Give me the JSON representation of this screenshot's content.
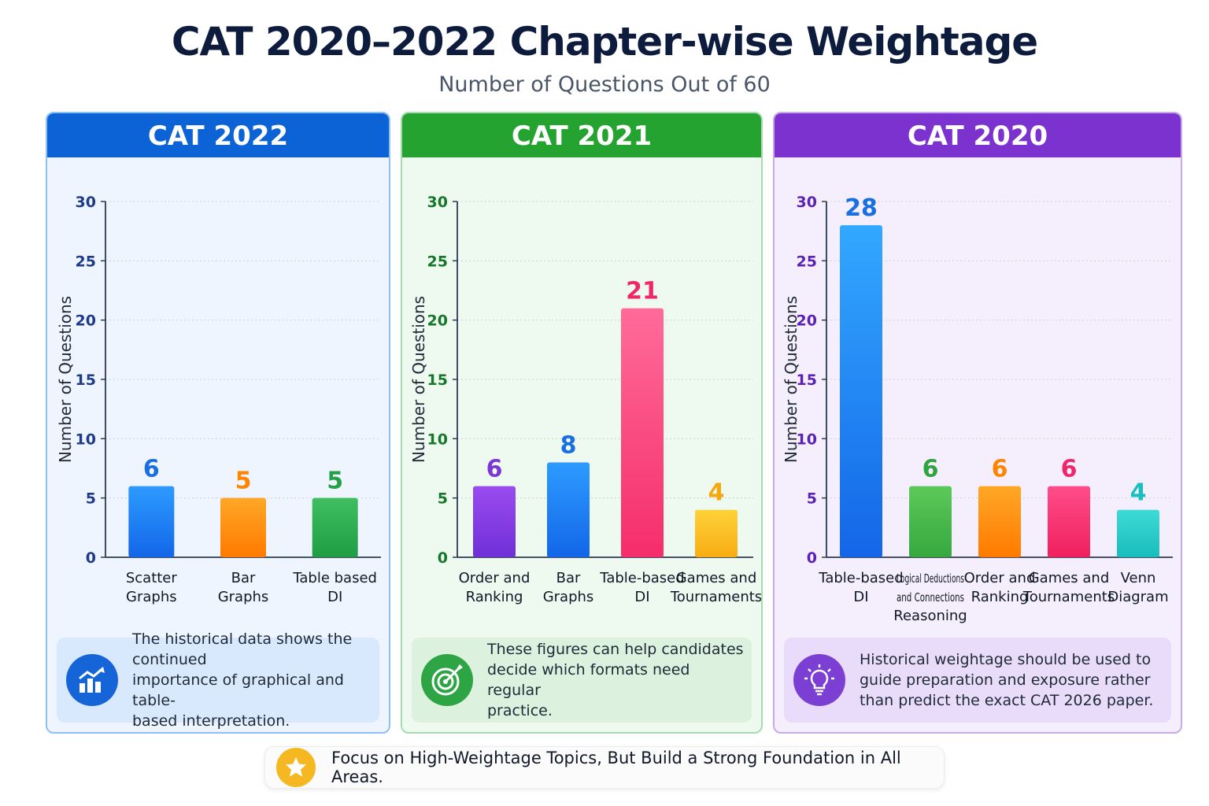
{
  "title": "CAT 2020–2022 Chapter-wise Weightage",
  "subtitle": "Number of Questions Out of 60",
  "colors": {
    "blue": "#1677f0",
    "green": "#2ba84a",
    "purple": "#7d3bd1",
    "orange": "#ff8a00",
    "pink": "#f7306f",
    "yellow": "#fbbf24",
    "teal": "#1cc7c7"
  },
  "panels": [
    {
      "header": "CAT 2022",
      "header_color": "#0b63d6",
      "border_color": "#8ec0f1",
      "bg_color": "#eef5fe",
      "note_bg": "#d9e9fd",
      "icon": "bar-chart-growth-icon",
      "icon_color": "#1565d8",
      "note": [
        "The historical data shows the continued",
        "importance of graphical and table-",
        "based interpretation."
      ],
      "chart_data": {
        "type": "bar",
        "ylabel": "Number of Questions",
        "ylim": [
          0,
          30
        ],
        "yticks": [
          0,
          5,
          10,
          15,
          20,
          25,
          30
        ],
        "tick_color": "#1e3a8a",
        "categories": [
          [
            "Scatter",
            "Graphs"
          ],
          [
            "Bar",
            "Graphs"
          ],
          [
            "Table based",
            "DI"
          ]
        ],
        "values": [
          6,
          5,
          5
        ],
        "bar_colors": [
          [
            "#2d9bff",
            "#1366e8"
          ],
          [
            "#ffa726",
            "#ff7a00"
          ],
          [
            "#3fbf5f",
            "#1f9d45"
          ]
        ],
        "label_colors": [
          "#1a6fe0",
          "#ff8400",
          "#25a046"
        ]
      }
    },
    {
      "header": "CAT 2021",
      "header_color": "#25a331",
      "border_color": "#a7dcb1",
      "bg_color": "#eef9ef",
      "note_bg": "#dcf2de",
      "icon": "target-arrow-icon",
      "icon_color": "#2ea544",
      "note": [
        "These figures can help candidates",
        "decide which formats need regular",
        "practice."
      ],
      "chart_data": {
        "type": "bar",
        "ylabel": "Number of Questions",
        "ylim": [
          0,
          30
        ],
        "yticks": [
          0,
          5,
          10,
          15,
          20,
          25,
          30
        ],
        "tick_color": "#16772a",
        "categories": [
          [
            "Order and",
            "Ranking"
          ],
          [
            "Bar",
            "Graphs"
          ],
          [
            "Table-based",
            "DI"
          ],
          [
            "Games and",
            "Tournaments"
          ]
        ],
        "values": [
          6,
          8,
          21,
          4
        ],
        "bar_colors": [
          [
            "#9a4cf0",
            "#6f2fd6"
          ],
          [
            "#2d9bff",
            "#1366e8"
          ],
          [
            "#ff6b9a",
            "#f52d6c"
          ],
          [
            "#ffd23a",
            "#f7ad12"
          ]
        ],
        "label_colors": [
          "#7c38d6",
          "#1a6fe0",
          "#f0266a",
          "#f5a70f"
        ]
      }
    },
    {
      "header": "CAT 2020",
      "header_color": "#7b32cf",
      "border_color": "#c9aae9",
      "bg_color": "#f5effd",
      "note_bg": "#e9dcfb",
      "icon": "lightbulb-icon",
      "icon_color": "#7b3fd4",
      "note": [
        "Historical weightage should be used to",
        "guide preparation and exposure rather",
        "than predict the exact CAT 2026 paper."
      ],
      "chart_data": {
        "type": "bar",
        "ylabel": "Number of Questions",
        "ylim": [
          0,
          30
        ],
        "yticks": [
          0,
          5,
          10,
          15,
          20,
          25,
          30
        ],
        "tick_color": "#5b21b6",
        "categories": [
          [
            "Table-based",
            "DI"
          ],
          [
            "Logical Deductions",
            "and Connections",
            "Reasoning"
          ],
          [
            "Order and",
            "Ranking"
          ],
          [
            "Games and",
            "Tournaments"
          ],
          [
            "Venn",
            "Diagram"
          ]
        ],
        "values": [
          28,
          6,
          6,
          6,
          4
        ],
        "bar_colors": [
          [
            "#33a8ff",
            "#1366e8"
          ],
          [
            "#5cc95a",
            "#36a83e"
          ],
          [
            "#ffa726",
            "#ff7a00"
          ],
          [
            "#ff4d8a",
            "#f0205e"
          ],
          [
            "#3fdad6",
            "#17bdbd"
          ]
        ],
        "label_colors": [
          "#1a6fe0",
          "#2fa33d",
          "#ff8400",
          "#f0266a",
          "#19bfbf"
        ]
      }
    }
  ],
  "footer": "Focus on High-Weightage Topics, But Build a Strong Foundation in All Areas.",
  "footer_icon": "star-icon"
}
